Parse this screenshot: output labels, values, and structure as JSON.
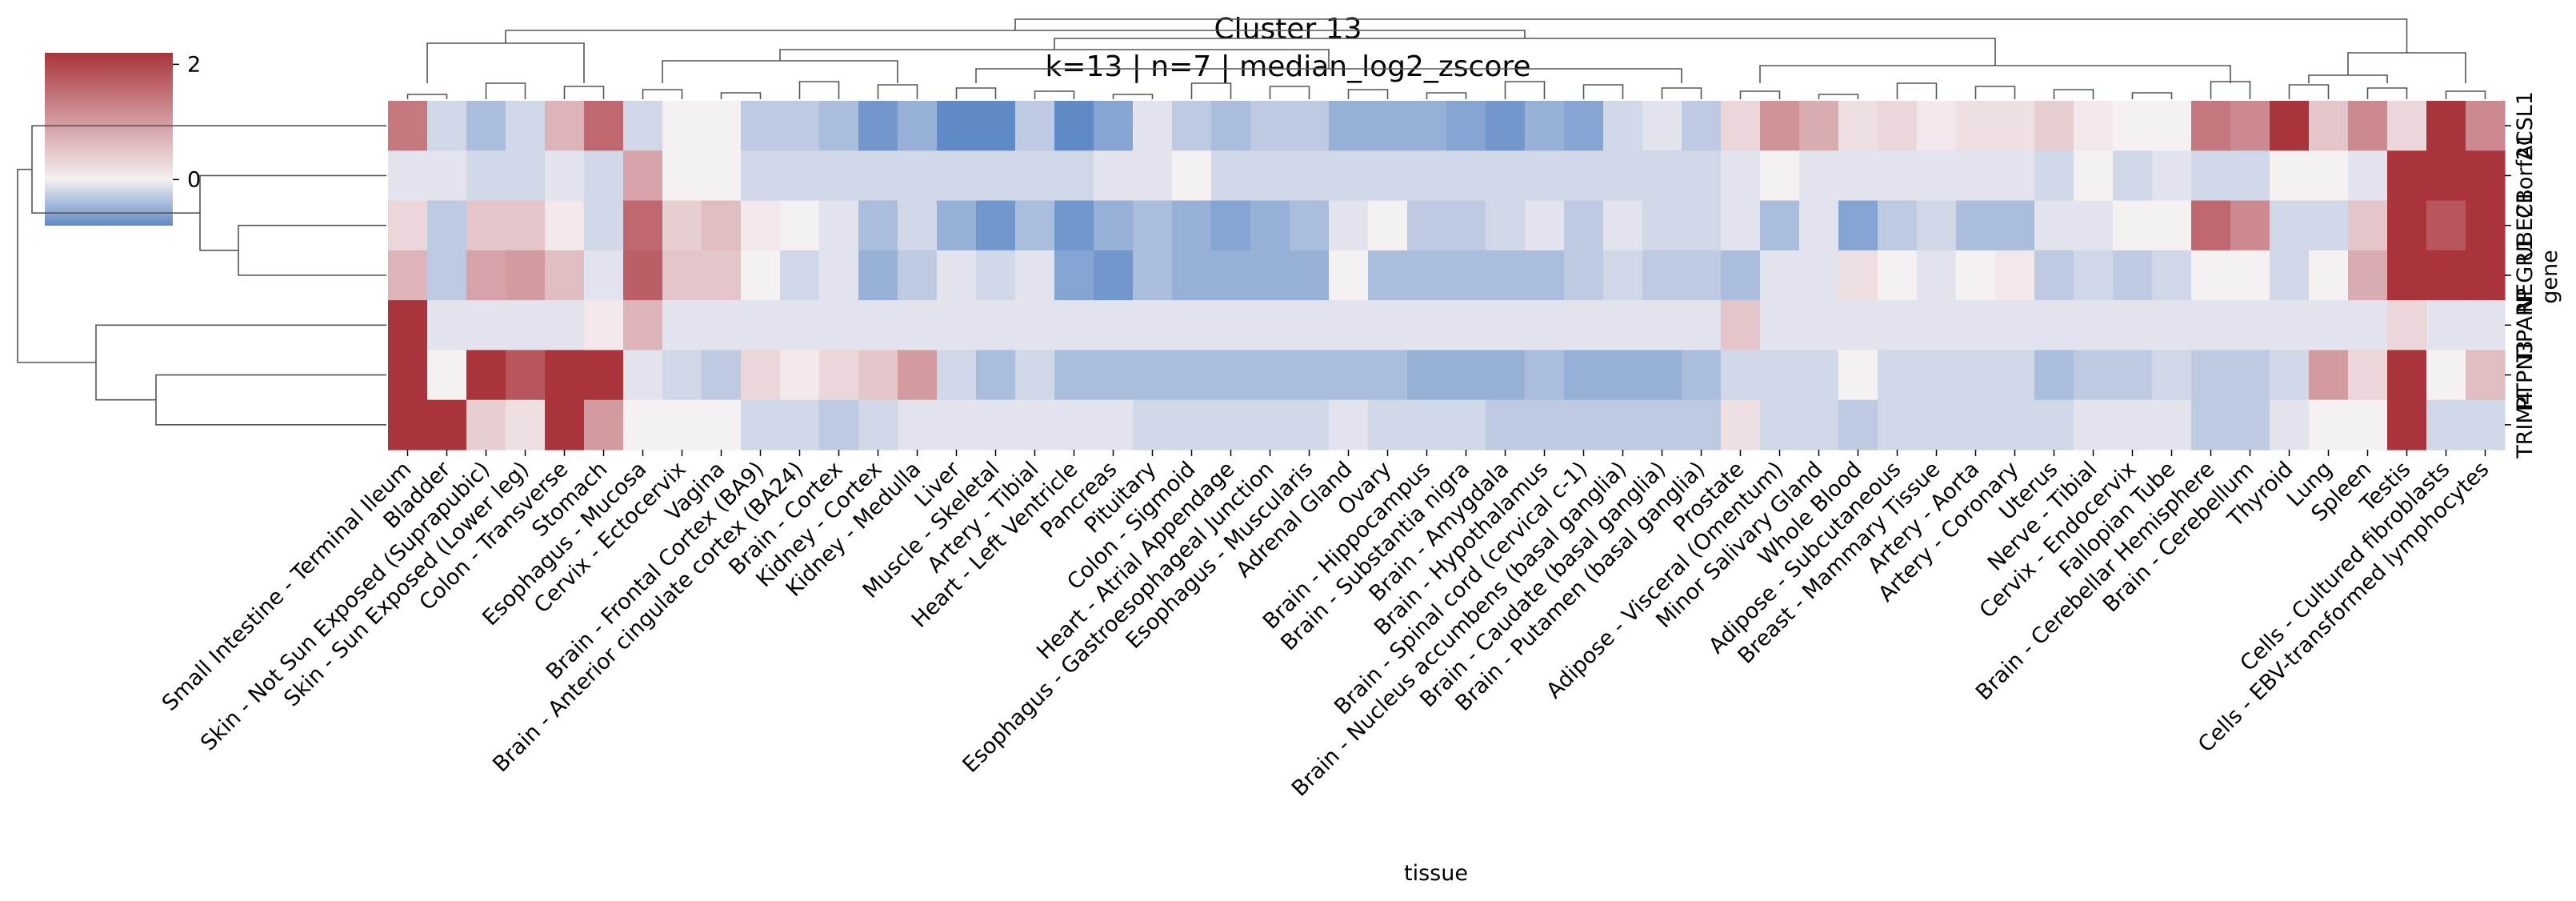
{
  "chart_data": {
    "type": "heatmap",
    "title": "Cluster 13",
    "subtitle": "k=13 | n=7 | median_log2_zscore",
    "xlabel": "tissue",
    "ylabel": "gene",
    "x": [
      "Small Intestine - Terminal Ileum",
      "Bladder",
      "Skin - Not Sun Exposed (Suprapubic)",
      "Skin - Sun Exposed (Lower leg)",
      "Colon - Transverse",
      "Stomach",
      "Esophagus - Mucosa",
      "Cervix - Ectocervix",
      "Vagina",
      "Brain - Frontal Cortex (BA9)",
      "Brain - Anterior cingulate cortex (BA24)",
      "Brain - Cortex",
      "Kidney - Cortex",
      "Kidney - Medulla",
      "Liver",
      "Muscle - Skeletal",
      "Artery - Tibial",
      "Heart - Left Ventricle",
      "Pancreas",
      "Pituitary",
      "Colon - Sigmoid",
      "Heart - Atrial Appendage",
      "Esophagus - Gastroesophageal Junction",
      "Esophagus - Muscularis",
      "Adrenal Gland",
      "Ovary",
      "Brain - Hippocampus",
      "Brain - Substantia nigra",
      "Brain - Amygdala",
      "Brain - Hypothalamus",
      "Brain - Spinal cord (cervical c-1)",
      "Brain - Nucleus accumbens (basal ganglia)",
      "Brain - Caudate (basal ganglia)",
      "Brain - Putamen (basal ganglia)",
      "Prostate",
      "Adipose - Visceral (Omentum)",
      "Minor Salivary Gland",
      "Whole Blood",
      "Adipose - Subcutaneous",
      "Breast - Mammary Tissue",
      "Artery - Aorta",
      "Artery - Coronary",
      "Uterus",
      "Nerve - Tibial",
      "Cervix - Endocervix",
      "Fallopian Tube",
      "Brain - Cerebellar Hemisphere",
      "Brain - Cerebellum",
      "Thyroid",
      "Lung",
      "Spleen",
      "Testis",
      "Cells - Cultured fibroblasts",
      "Cells - EBV-transformed lymphocytes"
    ],
    "y": [
      "ACSL1",
      "C1orf21",
      "UBE2B",
      "NEGR1",
      "TIPARP",
      "PTPN3",
      "TRIM4"
    ],
    "y_tick_labels_visible": [
      "ACSL1",
      "C1orf21",
      "UBE2B",
      "NEGR1",
      "TIPARP",
      "PTPN3",
      "TRIM4"
    ],
    "values": [
      [
        1.4,
        -0.2,
        -0.4,
        -0.2,
        0.7,
        1.6,
        -0.2,
        0.0,
        0.0,
        -0.3,
        -0.3,
        -0.4,
        -0.7,
        -0.5,
        -1.0,
        -1.0,
        -0.3,
        -0.8,
        -0.6,
        -0.1,
        -0.3,
        -0.4,
        -0.3,
        -0.3,
        -0.5,
        -0.5,
        -0.5,
        -0.6,
        -0.7,
        -0.5,
        -0.6,
        -0.2,
        -0.1,
        -0.3,
        0.3,
        1.1,
        0.8,
        0.2,
        0.3,
        0.1,
        0.2,
        0.2,
        0.4,
        0.1,
        0.0,
        0.0,
        1.4,
        1.2,
        2.4,
        0.5,
        1.2,
        0.3,
        2.4,
        1.2
      ],
      [
        -0.1,
        -0.1,
        -0.2,
        -0.2,
        -0.1,
        -0.2,
        0.9,
        0.0,
        0.0,
        -0.2,
        -0.2,
        -0.2,
        -0.2,
        -0.2,
        -0.2,
        -0.2,
        -0.2,
        -0.2,
        -0.1,
        -0.1,
        0.0,
        -0.2,
        -0.2,
        -0.2,
        -0.2,
        -0.2,
        -0.2,
        -0.2,
        -0.2,
        -0.2,
        -0.2,
        -0.2,
        -0.2,
        -0.2,
        -0.1,
        0.0,
        -0.1,
        -0.1,
        -0.1,
        -0.1,
        -0.1,
        -0.1,
        -0.2,
        0.0,
        -0.2,
        -0.1,
        -0.2,
        -0.2,
        0.0,
        0.0,
        -0.1,
        2.4,
        2.4,
        2.4
      ],
      [
        0.3,
        -0.3,
        0.5,
        0.5,
        0.1,
        -0.2,
        1.6,
        0.4,
        0.6,
        0.1,
        0.0,
        -0.1,
        -0.4,
        -0.2,
        -0.5,
        -0.7,
        -0.4,
        -0.7,
        -0.5,
        -0.4,
        -0.5,
        -0.6,
        -0.5,
        -0.4,
        -0.1,
        0.0,
        -0.3,
        -0.3,
        -0.2,
        -0.1,
        -0.3,
        -0.1,
        -0.2,
        -0.2,
        -0.1,
        -0.4,
        -0.1,
        -0.6,
        -0.3,
        -0.2,
        -0.4,
        -0.4,
        -0.1,
        -0.1,
        0.0,
        0.0,
        1.6,
        1.2,
        -0.2,
        -0.2,
        0.5,
        2.4,
        1.8,
        2.4
      ],
      [
        0.7,
        -0.3,
        0.9,
        1.0,
        0.6,
        -0.1,
        1.7,
        0.5,
        0.5,
        0.0,
        -0.2,
        -0.1,
        -0.5,
        -0.3,
        -0.1,
        -0.2,
        -0.1,
        -0.6,
        -0.7,
        -0.4,
        -0.5,
        -0.5,
        -0.5,
        -0.5,
        0.0,
        -0.4,
        -0.4,
        -0.4,
        -0.4,
        -0.4,
        -0.3,
        -0.2,
        -0.3,
        -0.3,
        -0.4,
        -0.1,
        -0.1,
        0.2,
        0.0,
        -0.1,
        0.0,
        0.1,
        -0.3,
        -0.2,
        -0.3,
        -0.2,
        0.0,
        0.0,
        -0.2,
        0.0,
        0.8,
        2.4,
        2.4,
        2.4
      ],
      [
        2.4,
        -0.1,
        -0.1,
        -0.1,
        -0.1,
        0.1,
        0.7,
        -0.1,
        -0.1,
        -0.1,
        -0.1,
        -0.1,
        -0.1,
        -0.1,
        -0.1,
        -0.1,
        -0.1,
        -0.1,
        -0.1,
        -0.1,
        -0.1,
        -0.1,
        -0.1,
        -0.1,
        -0.1,
        -0.1,
        -0.1,
        -0.1,
        -0.1,
        -0.1,
        -0.1,
        -0.1,
        -0.1,
        -0.1,
        0.5,
        -0.1,
        -0.1,
        -0.1,
        -0.1,
        -0.1,
        -0.1,
        -0.1,
        -0.1,
        -0.1,
        -0.1,
        -0.1,
        -0.1,
        -0.1,
        -0.1,
        -0.1,
        -0.1,
        0.3,
        -0.1,
        -0.1
      ],
      [
        2.4,
        0.0,
        2.2,
        1.8,
        2.4,
        2.4,
        -0.1,
        -0.2,
        -0.3,
        0.3,
        0.1,
        0.3,
        0.5,
        1.0,
        -0.2,
        -0.4,
        -0.2,
        -0.4,
        -0.4,
        -0.4,
        -0.4,
        -0.4,
        -0.4,
        -0.4,
        -0.4,
        -0.4,
        -0.5,
        -0.5,
        -0.5,
        -0.4,
        -0.5,
        -0.5,
        -0.5,
        -0.4,
        -0.2,
        -0.2,
        -0.2,
        0.0,
        -0.2,
        -0.2,
        -0.2,
        -0.2,
        -0.4,
        -0.3,
        -0.3,
        -0.2,
        -0.3,
        -0.3,
        -0.2,
        1.0,
        0.3,
        2.4,
        0.0,
        0.6
      ],
      [
        2.4,
        2.4,
        0.4,
        0.2,
        2.4,
        1.0,
        0.0,
        0.0,
        0.0,
        -0.2,
        -0.2,
        -0.3,
        -0.2,
        -0.1,
        -0.1,
        -0.1,
        -0.1,
        -0.1,
        -0.1,
        -0.2,
        -0.2,
        -0.2,
        -0.2,
        -0.2,
        -0.1,
        -0.2,
        -0.2,
        -0.2,
        -0.3,
        -0.3,
        -0.3,
        -0.3,
        -0.3,
        -0.3,
        0.2,
        -0.2,
        -0.2,
        -0.3,
        -0.2,
        -0.2,
        -0.2,
        -0.2,
        -0.2,
        -0.1,
        -0.1,
        -0.1,
        -0.3,
        -0.3,
        -0.1,
        0.0,
        0.0,
        2.4,
        -0.2,
        -0.2
      ]
    ],
    "colorbar": {
      "cmap": "vlag (blue-white-red)",
      "vmin": -0.8,
      "vmax": 2.2,
      "ticks": [
        0,
        2
      ],
      "tick_labels": [
        "0",
        "2"
      ],
      "colors": [
        "#5f8ac6",
        "#f5f0f2",
        "#a9343c"
      ]
    },
    "row_dendrogram_order": [
      "ACSL1",
      "C1orf21",
      "UBE2B",
      "NEGR1",
      "TIPARP",
      "PTPN3",
      "TRIM4"
    ],
    "col_dendrogram": true,
    "grid": false
  }
}
